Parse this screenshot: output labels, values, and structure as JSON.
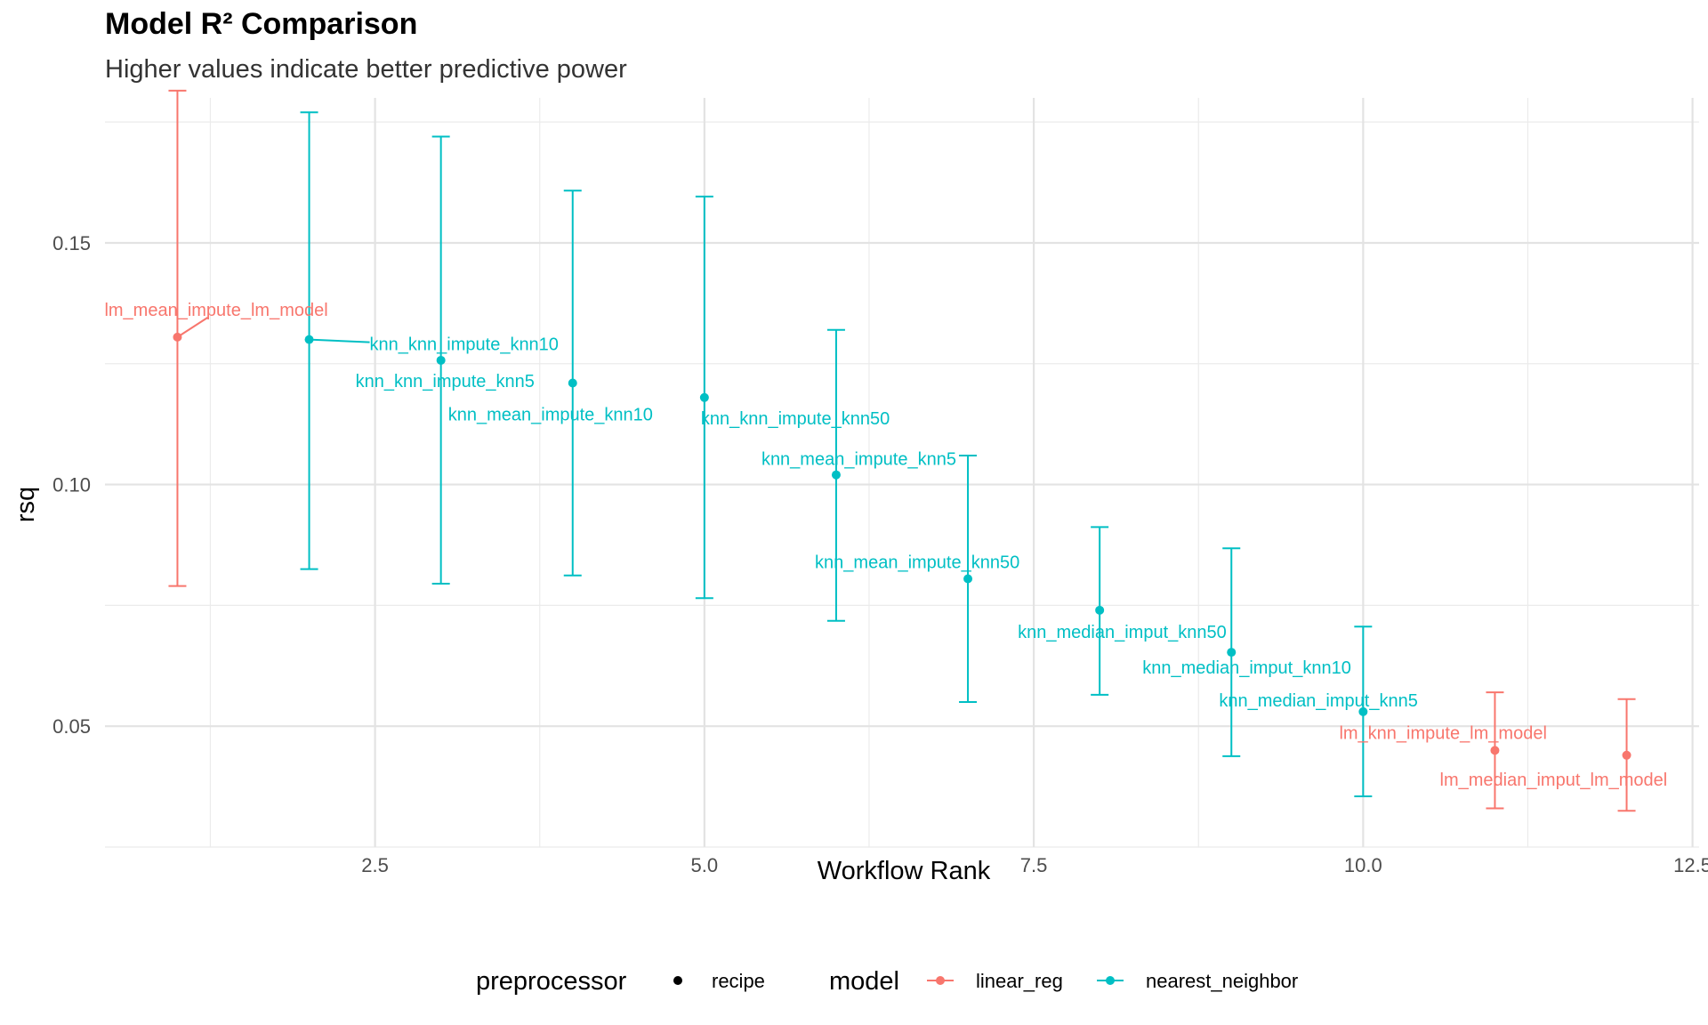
{
  "chart_data": {
    "type": "scatter",
    "title": "Model R² Comparison",
    "subtitle": "Higher values indicate better predictive power",
    "xlabel": "Workflow Rank",
    "ylabel": "rsq",
    "xlim": [
      0.45,
      12.55
    ],
    "ylim": [
      0.025,
      0.18
    ],
    "x_ticks": [
      2.5,
      5.0,
      7.5,
      10.0,
      12.5
    ],
    "x_tick_labels": [
      "2.5",
      "5.0",
      "7.5",
      "10.0",
      "12.5"
    ],
    "y_ticks": [
      0.05,
      0.1,
      0.15
    ],
    "y_tick_labels": [
      "0.05",
      "0.10",
      "0.15"
    ],
    "grid": true,
    "colors": {
      "linear_reg": "#F8766D",
      "nearest_neighbor": "#00BFC4"
    },
    "points": [
      {
        "rank": 1,
        "rsq": 0.1305,
        "lower": 0.079,
        "upper": 0.1815,
        "model": "linear_reg",
        "label": "lm_mean_impute_lm_model"
      },
      {
        "rank": 2,
        "rsq": 0.13,
        "lower": 0.0825,
        "upper": 0.177,
        "model": "nearest_neighbor",
        "label": "knn_knn_impute_knn10"
      },
      {
        "rank": 3,
        "rsq": 0.1257,
        "lower": 0.0795,
        "upper": 0.172,
        "model": "nearest_neighbor",
        "label": "knn_knn_impute_knn5"
      },
      {
        "rank": 4,
        "rsq": 0.121,
        "lower": 0.0812,
        "upper": 0.1608,
        "model": "nearest_neighbor",
        "label": "knn_mean_impute_knn10"
      },
      {
        "rank": 5,
        "rsq": 0.118,
        "lower": 0.0765,
        "upper": 0.1596,
        "model": "nearest_neighbor",
        "label": "knn_knn_impute_knn50"
      },
      {
        "rank": 6,
        "rsq": 0.102,
        "lower": 0.0718,
        "upper": 0.132,
        "model": "nearest_neighbor",
        "label": "knn_mean_impute_knn5"
      },
      {
        "rank": 7,
        "rsq": 0.0805,
        "lower": 0.055,
        "upper": 0.106,
        "model": "nearest_neighbor",
        "label": "knn_mean_impute_knn50"
      },
      {
        "rank": 8,
        "rsq": 0.074,
        "lower": 0.0565,
        "upper": 0.0912,
        "model": "nearest_neighbor",
        "label": "knn_median_imput_knn50"
      },
      {
        "rank": 9,
        "rsq": 0.0653,
        "lower": 0.0438,
        "upper": 0.0868,
        "model": "nearest_neighbor",
        "label": "knn_median_imput_knn10"
      },
      {
        "rank": 10,
        "rsq": 0.053,
        "lower": 0.0355,
        "upper": 0.0706,
        "model": "nearest_neighbor",
        "label": "knn_median_imput_knn5"
      },
      {
        "rank": 11,
        "rsq": 0.045,
        "lower": 0.033,
        "upper": 0.057,
        "model": "linear_reg",
        "label": "lm_knn_impute_lm_model"
      },
      {
        "rank": 12,
        "rsq": 0.044,
        "lower": 0.0325,
        "upper": 0.0556,
        "model": "linear_reg",
        "label": "lm_median_imput_lm_model"
      }
    ],
    "legend": {
      "placement": "bottom",
      "preprocessor_title": "preprocessor",
      "preprocessor_items": [
        "recipe"
      ],
      "model_title": "model",
      "model_items": [
        "linear_reg",
        "nearest_neighbor"
      ]
    }
  }
}
